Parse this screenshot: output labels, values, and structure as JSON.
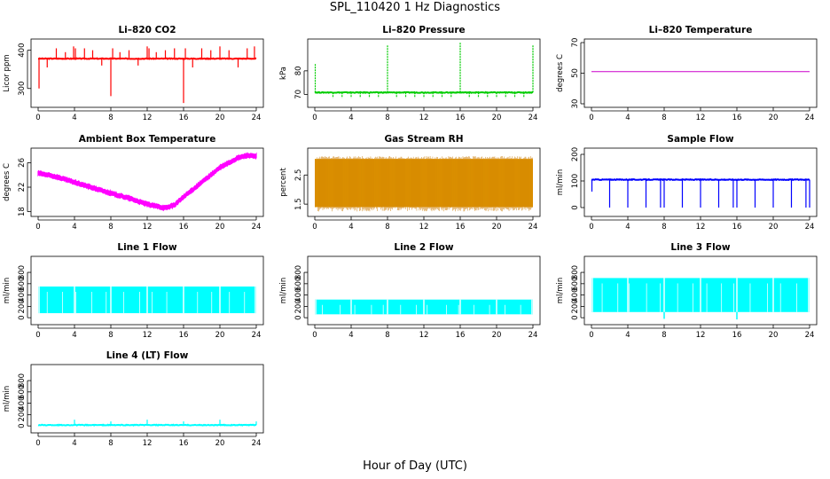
{
  "figure": {
    "title": "SPL_110420  1 Hz Diagnostics",
    "xlabel": "Hour of Day (UTC)"
  },
  "chart_data": [
    {
      "type": "line",
      "title": "Li–820 CO2",
      "xlabel": "",
      "ylabel": "Licor ppm",
      "xlim": [
        0,
        24
      ],
      "ylim": [
        260,
        420
      ],
      "yticks": [
        300,
        400
      ],
      "xticks": [
        0,
        4,
        8,
        12,
        16,
        20,
        24
      ],
      "color": "#ff0000",
      "baseline": 378,
      "spikes": [
        {
          "x": 0.1,
          "y": 300
        },
        {
          "x": 1.0,
          "y": 355
        },
        {
          "x": 2.0,
          "y": 405
        },
        {
          "x": 3.0,
          "y": 395
        },
        {
          "x": 3.9,
          "y": 410
        },
        {
          "x": 4.1,
          "y": 405
        },
        {
          "x": 5.1,
          "y": 405
        },
        {
          "x": 6.0,
          "y": 400
        },
        {
          "x": 7.0,
          "y": 360
        },
        {
          "x": 8.0,
          "y": 280
        },
        {
          "x": 8.2,
          "y": 405
        },
        {
          "x": 9.0,
          "y": 395
        },
        {
          "x": 10.0,
          "y": 400
        },
        {
          "x": 11.0,
          "y": 360
        },
        {
          "x": 12.0,
          "y": 410
        },
        {
          "x": 12.2,
          "y": 405
        },
        {
          "x": 13.0,
          "y": 395
        },
        {
          "x": 14.0,
          "y": 400
        },
        {
          "x": 15.0,
          "y": 405
        },
        {
          "x": 16.0,
          "y": 262
        },
        {
          "x": 16.2,
          "y": 405
        },
        {
          "x": 17.0,
          "y": 355
        },
        {
          "x": 18.0,
          "y": 405
        },
        {
          "x": 19.0,
          "y": 400
        },
        {
          "x": 20.0,
          "y": 410
        },
        {
          "x": 21.0,
          "y": 400
        },
        {
          "x": 22.0,
          "y": 355
        },
        {
          "x": 23.0,
          "y": 405
        },
        {
          "x": 23.8,
          "y": 410
        }
      ]
    },
    {
      "type": "line",
      "title": "Li–820 Pressure",
      "xlabel": "",
      "ylabel": "kPa",
      "xlim": [
        0,
        24
      ],
      "ylim": [
        66,
        92
      ],
      "yticks": [
        70,
        80
      ],
      "xticks": [
        0,
        4,
        8,
        12,
        16,
        20,
        24
      ],
      "color": "#00cc00",
      "baseline": 70.8,
      "spikes": [
        {
          "x": 0.05,
          "y": 83
        },
        {
          "x": 8.0,
          "y": 91
        },
        {
          "x": 16.0,
          "y": 92
        },
        {
          "x": 24.0,
          "y": 91
        },
        {
          "x": 2.0,
          "y": 68.5
        },
        {
          "x": 3.0,
          "y": 68.5
        },
        {
          "x": 4.0,
          "y": 68.5
        },
        {
          "x": 5.0,
          "y": 68.5
        },
        {
          "x": 6.0,
          "y": 68.5
        },
        {
          "x": 7.0,
          "y": 68.5
        },
        {
          "x": 9.0,
          "y": 68.5
        },
        {
          "x": 10.0,
          "y": 68.5
        },
        {
          "x": 11.0,
          "y": 68.5
        },
        {
          "x": 12.0,
          "y": 68.5
        },
        {
          "x": 13.0,
          "y": 68.5
        },
        {
          "x": 14.0,
          "y": 68.5
        },
        {
          "x": 15.0,
          "y": 68.5
        },
        {
          "x": 17.0,
          "y": 68.5
        },
        {
          "x": 18.0,
          "y": 68.5
        },
        {
          "x": 19.0,
          "y": 68.5
        },
        {
          "x": 20.0,
          "y": 68.5
        },
        {
          "x": 21.0,
          "y": 68.5
        },
        {
          "x": 22.0,
          "y": 68.5
        },
        {
          "x": 23.0,
          "y": 68.5
        }
      ]
    },
    {
      "type": "line",
      "title": "Li–820 Temperature",
      "xlabel": "",
      "ylabel": "degrees C",
      "xlim": [
        0,
        24
      ],
      "ylim": [
        30,
        70
      ],
      "yticks": [
        30,
        50,
        70
      ],
      "xticks": [
        0,
        4,
        8,
        12,
        16,
        20,
        24
      ],
      "color": "#cc00cc",
      "baseline": 51,
      "spikes": []
    },
    {
      "type": "line",
      "title": "Ambient Box Temperature",
      "xlabel": "",
      "ylabel": "degrees C",
      "xlim": [
        0,
        24
      ],
      "ylim": [
        17.8,
        27.8
      ],
      "yticks": [
        18,
        22,
        26
      ],
      "xticks": [
        0,
        4,
        8,
        12,
        16,
        20,
        24
      ],
      "color": "#ff00ff",
      "band": 0.6,
      "curve": [
        [
          0,
          24.3
        ],
        [
          2,
          23.7
        ],
        [
          4,
          22.8
        ],
        [
          6,
          21.9
        ],
        [
          8,
          21.0
        ],
        [
          10,
          20.2
        ],
        [
          12,
          19.2
        ],
        [
          14,
          18.6
        ],
        [
          15,
          19.1
        ],
        [
          16,
          20.4
        ],
        [
          18,
          22.8
        ],
        [
          20,
          25.2
        ],
        [
          22,
          26.8
        ],
        [
          23,
          27.2
        ],
        [
          24,
          27.0
        ]
      ]
    },
    {
      "type": "area",
      "title": "Gas Stream RH",
      "xlabel": "",
      "ylabel": "percent",
      "xlim": [
        0,
        24
      ],
      "ylim": [
        1.2,
        3.3
      ],
      "yticks": [
        1.5,
        2.5
      ],
      "xticks": [
        0,
        4,
        8,
        12,
        16,
        20,
        24
      ],
      "color": "#e6a100",
      "top": 3.05,
      "bottom": 1.4
    },
    {
      "type": "line",
      "title": "Sample Flow",
      "xlabel": "",
      "ylabel": "ml/min",
      "xlim": [
        0,
        24
      ],
      "ylim": [
        -20,
        210
      ],
      "yticks": [
        0,
        100,
        200
      ],
      "xticks": [
        0,
        4,
        8,
        12,
        16,
        20,
        24
      ],
      "color": "#0000ff",
      "baseline": 105,
      "spikes": [
        {
          "x": 0.05,
          "y": 60
        },
        {
          "x": 2.0,
          "y": 0
        },
        {
          "x": 4.0,
          "y": 0
        },
        {
          "x": 6.0,
          "y": 0
        },
        {
          "x": 7.6,
          "y": 0
        },
        {
          "x": 8.0,
          "y": 0
        },
        {
          "x": 10.0,
          "y": 0
        },
        {
          "x": 12.0,
          "y": 0
        },
        {
          "x": 14.0,
          "y": 0
        },
        {
          "x": 15.6,
          "y": 0
        },
        {
          "x": 16.0,
          "y": 0
        },
        {
          "x": 18.0,
          "y": 0
        },
        {
          "x": 20.0,
          "y": 0
        },
        {
          "x": 22.0,
          "y": 0
        },
        {
          "x": 23.6,
          "y": 0
        },
        {
          "x": 24.0,
          "y": 0
        }
      ]
    },
    {
      "type": "area",
      "title": "Line 1 Flow",
      "xlabel": "",
      "ylabel": "ml/min",
      "xlim": [
        0,
        24
      ],
      "ylim": [
        -60,
        1020
      ],
      "yticks": [
        0,
        200,
        400,
        600,
        800
      ],
      "xticks": [
        0,
        4,
        8,
        12,
        16,
        20,
        24
      ],
      "color": "#00ffff",
      "top": 550,
      "bottom": 80,
      "gaps": [
        0.1,
        4.0,
        8.0,
        12.0,
        16.0,
        20.0,
        23.9
      ]
    },
    {
      "type": "area",
      "title": "Line 2 Flow",
      "xlabel": "",
      "ylabel": "ml/min",
      "xlim": [
        0,
        24
      ],
      "ylim": [
        -60,
        1020
      ],
      "yticks": [
        0,
        200,
        400,
        600,
        800
      ],
      "xticks": [
        0,
        4,
        8,
        12,
        16,
        20,
        24
      ],
      "color": "#00ffff",
      "top": 320,
      "bottom": 60,
      "gaps": [
        0.1,
        4.0,
        8.0,
        12.0,
        16.0,
        20.0,
        23.9
      ]
    },
    {
      "type": "area",
      "title": "Line 3 Flow",
      "xlabel": "",
      "ylabel": "ml/min",
      "xlim": [
        0,
        24
      ],
      "ylim": [
        -60,
        1020
      ],
      "yticks": [
        0,
        200,
        400,
        600,
        800
      ],
      "xticks": [
        0,
        4,
        8,
        12,
        16,
        20,
        24
      ],
      "color": "#00ffff",
      "top": 700,
      "bottom": 100,
      "gaps": [
        0.1,
        4.0,
        8.0,
        12.0,
        16.0,
        20.0,
        23.9
      ],
      "dips": [
        {
          "x": 8.0,
          "y": -20
        },
        {
          "x": 16.0,
          "y": -30
        }
      ]
    },
    {
      "type": "line",
      "title": "Line 4 (LT) Flow",
      "xlabel": "",
      "ylabel": "ml/min",
      "xlim": [
        0,
        24
      ],
      "ylim": [
        -60,
        1020
      ],
      "yticks": [
        0,
        200,
        400,
        600,
        800
      ],
      "xticks": [
        0,
        4,
        8,
        12,
        16,
        20,
        24
      ],
      "color": "#00ffff",
      "baseline": 15,
      "spikes": [
        {
          "x": 4.0,
          "y": 110
        },
        {
          "x": 8.0,
          "y": 80
        },
        {
          "x": 12.0,
          "y": 110
        },
        {
          "x": 16.0,
          "y": 80
        },
        {
          "x": 20.0,
          "y": 110
        },
        {
          "x": 24.0,
          "y": 80
        }
      ]
    }
  ]
}
